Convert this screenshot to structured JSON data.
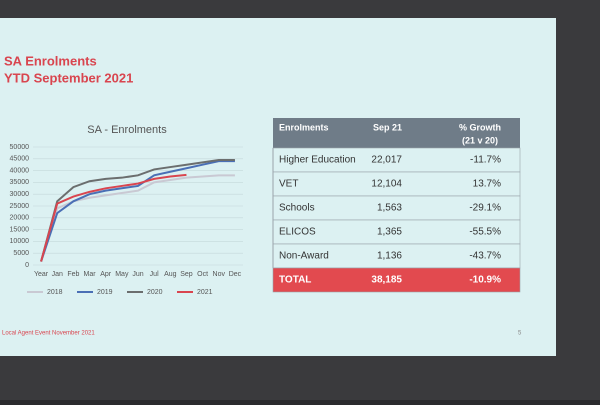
{
  "slide": {
    "title": "SA Enrolments",
    "subtitle": "YTD September 2021",
    "footer": "Local Agent Event November 2021",
    "page_number": "5"
  },
  "chart_data": {
    "type": "line",
    "title": "SA - Enrolments",
    "categories": [
      "Year",
      "Jan",
      "Feb",
      "Mar",
      "Apr",
      "May",
      "Jun",
      "Jul",
      "Aug",
      "Sep",
      "Oct",
      "Nov",
      "Dec"
    ],
    "series": [
      {
        "name": "2018",
        "color": "#c9c9d3",
        "values": [
          1500,
          24000,
          27000,
          28500,
          29500,
          30500,
          31500,
          35000,
          36000,
          37000,
          37500,
          38000,
          38000
        ]
      },
      {
        "name": "2019",
        "color": "#4a6fb5",
        "values": [
          1500,
          22000,
          27000,
          30000,
          31500,
          32500,
          33500,
          38000,
          39500,
          41000,
          42500,
          44000,
          44000
        ]
      },
      {
        "name": "2020",
        "color": "#6b6e6e",
        "values": [
          1500,
          27000,
          33000,
          35500,
          36500,
          37000,
          38000,
          40500,
          41500,
          42500,
          43500,
          44500,
          44500
        ]
      },
      {
        "name": "2021",
        "color": "#d9454f",
        "values": [
          1500,
          26000,
          29000,
          31000,
          32500,
          33500,
          34500,
          36500,
          37500,
          38185,
          null,
          null,
          null
        ]
      }
    ],
    "ylim": [
      0,
      50000
    ],
    "yticks": [
      0,
      5000,
      10000,
      15000,
      20000,
      25000,
      30000,
      35000,
      40000,
      45000,
      50000
    ],
    "grid": true,
    "legend": "bottom"
  },
  "table": {
    "header": [
      "Enrolments",
      "Sep 21",
      "% Growth"
    ],
    "header_note": "(21 v 20)",
    "rows": [
      [
        "Higher Education",
        "22,017",
        "-11.7%"
      ],
      [
        "VET",
        "12,104",
        "13.7%"
      ],
      [
        "Schools",
        "1,563",
        "-29.1%"
      ],
      [
        "ELICOS",
        "1,365",
        "-55.5%"
      ],
      [
        "Non-Award",
        "1,136",
        "-43.7%"
      ],
      [
        "TOTAL",
        "38,185",
        "-10.9%"
      ]
    ]
  }
}
